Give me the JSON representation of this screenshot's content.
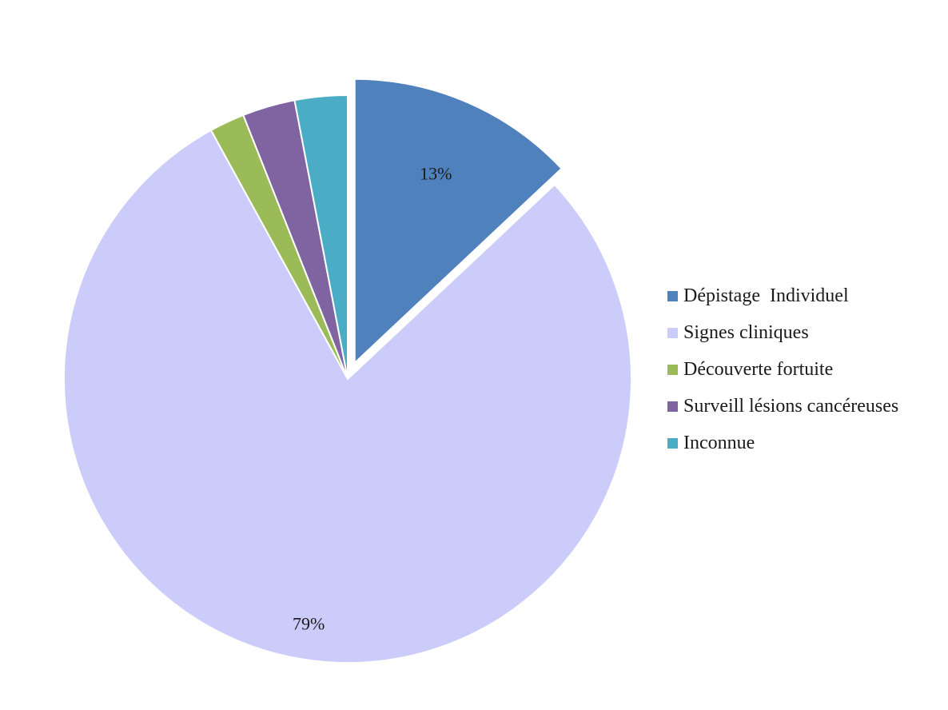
{
  "chart_data": {
    "type": "pie",
    "title": "",
    "categories": [
      "Dépistage  Individuel",
      "Signes cliniques",
      "Découverte fortuite",
      "Surveill lésions cancéreuses",
      "Inconnue"
    ],
    "values": [
      13,
      79,
      2,
      3,
      3
    ],
    "data_labels": [
      "13%",
      "79%",
      "",
      "",
      ""
    ],
    "colors": [
      "#4f81bd",
      "#ccccfa",
      "#9bbb59",
      "#8064a2",
      "#4bacc6"
    ],
    "exploded": [
      true,
      false,
      false,
      false,
      false
    ],
    "legend_position": "right",
    "start_angle": "12 o'clock, clockwise"
  }
}
